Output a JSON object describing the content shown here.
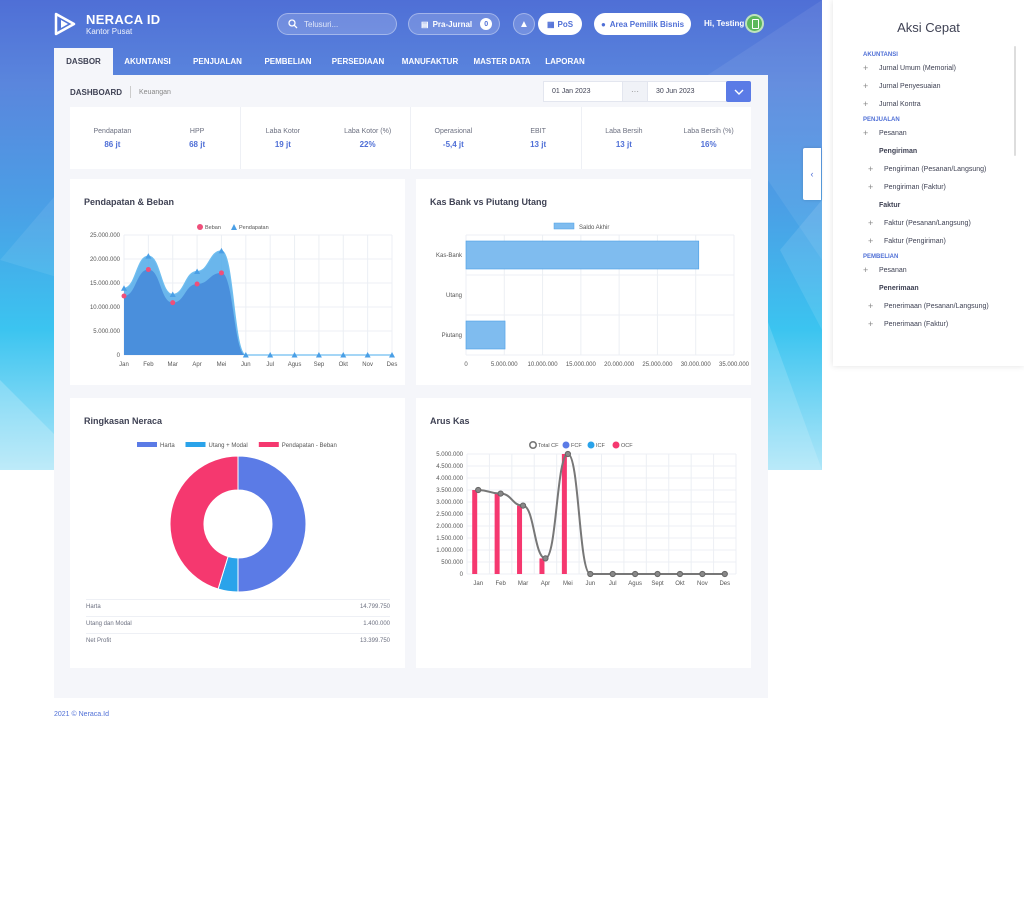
{
  "brand": {
    "name": "NERACA ID",
    "branch": "Kantor Pusat"
  },
  "header": {
    "search_placeholder": "Telusuri...",
    "prajurnal_label": "Pra-Jurnal",
    "prajurnal_count": "0",
    "pos_label": "PoS",
    "owner_label": "Area Pemilik Bisnis",
    "greeting": "Hi, Testing"
  },
  "nav": {
    "tabs": [
      "DASBOR",
      "AKUNTANSI",
      "PENJUALAN",
      "PEMBELIAN",
      "PERSEDIAAN",
      "MANUFAKTUR",
      "MASTER DATA",
      "LAPORAN"
    ],
    "active": "DASBOR"
  },
  "dashboard": {
    "title": "DASHBOARD",
    "subtitle": "Keuangan",
    "date_from": "01 Jan 2023",
    "date_sep": "···",
    "date_to": "30 Jun 2023"
  },
  "stats": [
    [
      {
        "label": "Pendapatan",
        "value": "86 jt"
      },
      {
        "label": "HPP",
        "value": "68 jt"
      }
    ],
    [
      {
        "label": "Laba Kotor",
        "value": "19 jt"
      },
      {
        "label": "Laba Kotor (%)",
        "value": "22%"
      }
    ],
    [
      {
        "label": "Operasional",
        "value": "-5,4 jt"
      },
      {
        "label": "EBIT",
        "value": "13 jt"
      }
    ],
    [
      {
        "label": "Laba Bersih",
        "value": "13 jt"
      },
      {
        "label": "Laba Bersih (%)",
        "value": "16%"
      }
    ]
  ],
  "cards": {
    "c1": "Pendapatan & Beban",
    "c2": "Kas Bank vs Piutang Utang",
    "c3": "Ringkasan Neraca",
    "c4": "Arus Kas"
  },
  "neraca_table": [
    {
      "label": "Harta",
      "value": "14.799.750"
    },
    {
      "label": "Utang dan Modal",
      "value": "1.400.000"
    },
    {
      "label": "Net Profit",
      "value": "13.399.750"
    }
  ],
  "footer": "2021 © Neraca.Id",
  "right_panel": {
    "title": "Aksi Cepat",
    "rows": [
      {
        "k": "sec",
        "t": "AKUNTANSI"
      },
      {
        "k": "item",
        "t": "Jurnal Umum (Memorial)"
      },
      {
        "k": "item",
        "t": "Jurnal Penyesuaian"
      },
      {
        "k": "item",
        "t": "Jurnal Kontra"
      },
      {
        "k": "sec",
        "t": "PENJUALAN"
      },
      {
        "k": "item",
        "t": "Pesanan"
      },
      {
        "k": "sub",
        "t": "Pengiriman"
      },
      {
        "k": "item2",
        "t": "Pengiriman (Pesanan/Langsung)"
      },
      {
        "k": "item2",
        "t": "Pengiriman (Faktur)"
      },
      {
        "k": "sub",
        "t": "Faktur"
      },
      {
        "k": "item2",
        "t": "Faktur (Pesanan/Langsung)"
      },
      {
        "k": "item2",
        "t": "Faktur (Pengiriman)"
      },
      {
        "k": "sec",
        "t": "PEMBELIAN"
      },
      {
        "k": "item",
        "t": "Pesanan"
      },
      {
        "k": "sub",
        "t": "Penerimaan"
      },
      {
        "k": "item2",
        "t": "Penerimaan (Pesanan/Langsung)"
      },
      {
        "k": "item2",
        "t": "Penerimaan (Faktur)"
      }
    ]
  },
  "chart_data": [
    {
      "type": "area",
      "title": "Pendapatan & Beban",
      "categories": [
        "Jan",
        "Feb",
        "Mar",
        "Apr",
        "Mei",
        "Jun",
        "Jul",
        "Agus",
        "Sep",
        "Okt",
        "Nov",
        "Des"
      ],
      "series": [
        {
          "name": "Beban",
          "color": "#ef4f7a",
          "values": [
            12300000,
            17800000,
            10900000,
            14800000,
            17100000,
            0,
            0,
            0,
            0,
            0,
            0,
            0
          ]
        },
        {
          "name": "Pendapatan",
          "color": "#4a9fe6",
          "values": [
            13900000,
            20600000,
            12600000,
            17400000,
            21700000,
            0,
            0,
            0,
            0,
            0,
            0,
            0
          ]
        }
      ],
      "ylim": [
        0,
        25000000
      ],
      "yticks": [
        "0",
        "5.000.000",
        "10.000.000",
        "15.000.000",
        "20.000.000",
        "25.000.000"
      ],
      "legend": "top"
    },
    {
      "type": "bar",
      "orientation": "horizontal",
      "title": "Kas Bank vs Piutang Utang",
      "categories": [
        "Kas-Bank",
        "Utang",
        "Piutang"
      ],
      "series": [
        {
          "name": "Saldo Akhir",
          "color": "#7fbcef",
          "values": [
            30400000,
            0,
            5100000
          ]
        }
      ],
      "xlim": [
        0,
        35000000
      ],
      "xticks": [
        "0",
        "5.000.000",
        "10.000.000",
        "15.000.000",
        "20.000.000",
        "25.000.000",
        "30.000.000",
        "35.000.000"
      ],
      "legend": "top"
    },
    {
      "type": "pie",
      "subtype": "doughnut",
      "title": "Ringkasan Neraca",
      "series": [
        {
          "name": "Harta",
          "color": "#5b7be6",
          "value": 14799750
        },
        {
          "name": "Utang + Modal",
          "color": "#2aa3ea",
          "value": 1400000
        },
        {
          "name": "Pendapatan - Beban",
          "color": "#f5386f",
          "value": 13399750
        }
      ],
      "legend": "top"
    },
    {
      "type": "bar+line",
      "title": "Arus Kas",
      "categories": [
        "Jan",
        "Feb",
        "Mar",
        "Apr",
        "Mei",
        "Jun",
        "Jul",
        "Agus",
        "Sept",
        "Okt",
        "Nov",
        "Des"
      ],
      "series": [
        {
          "name": "Total CF",
          "type": "line",
          "color": "#777777",
          "values": [
            3500000,
            3350000,
            2850000,
            650000,
            5000000,
            0,
            0,
            0,
            0,
            0,
            0,
            0
          ]
        },
        {
          "name": "FCF",
          "type": "bar",
          "color": "#5b7be6",
          "values": [
            0,
            0,
            0,
            0,
            0,
            0,
            0,
            0,
            0,
            0,
            0,
            0
          ]
        },
        {
          "name": "ICF",
          "type": "bar",
          "color": "#2aa3ea",
          "values": [
            0,
            0,
            0,
            0,
            0,
            0,
            0,
            0,
            0,
            0,
            0,
            0
          ]
        },
        {
          "name": "OCF",
          "type": "bar",
          "color": "#f5386f",
          "values": [
            3500000,
            3350000,
            2850000,
            650000,
            5000000,
            0,
            0,
            0,
            0,
            0,
            0,
            0
          ]
        }
      ],
      "ylim": [
        0,
        5000000
      ],
      "yticks": [
        "0",
        "500.000",
        "1.000.000",
        "1.500.000",
        "2.000.000",
        "2.500.000",
        "3.000.000",
        "3.500.000",
        "4.000.000",
        "4.500.000",
        "5.000.000"
      ],
      "legend": "top"
    }
  ]
}
